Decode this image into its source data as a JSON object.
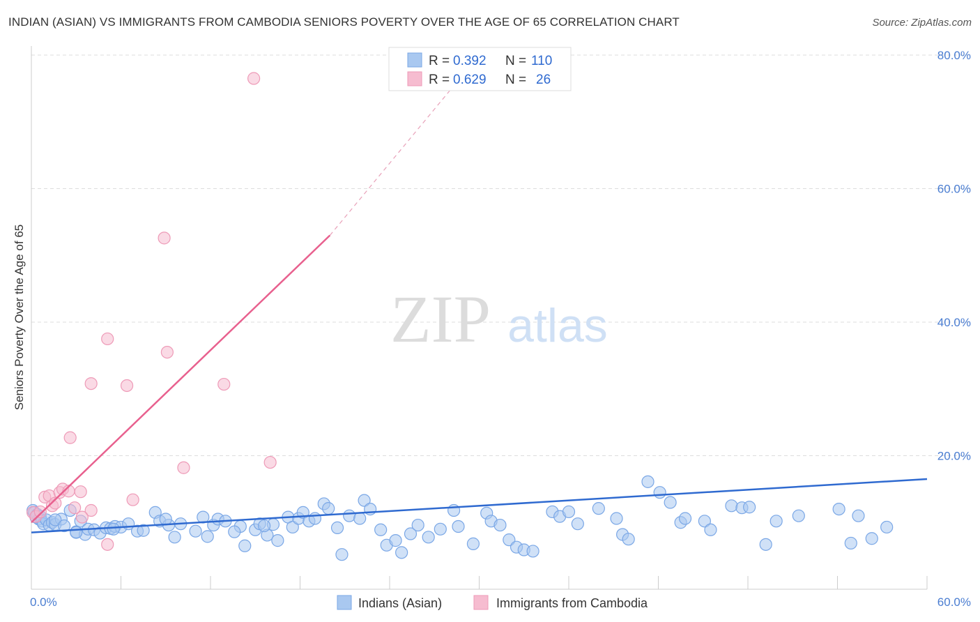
{
  "title": "INDIAN (ASIAN) VS IMMIGRANTS FROM CAMBODIA SENIORS POVERTY OVER THE AGE OF 65 CORRELATION CHART",
  "source": "Source: ZipAtlas.com",
  "watermark": {
    "zip": "ZIP",
    "atlas": "atlas"
  },
  "legend": {
    "r_label": "R =",
    "n_label": "N =",
    "rows": [
      {
        "r": "0.392",
        "n": "110"
      },
      {
        "r": "0.629",
        "n": "26"
      }
    ]
  },
  "colors": {
    "blue_fill": "#a9c8f0",
    "blue_stroke": "#7aa7e6",
    "blue_line": "#2f6ad0",
    "pink_fill": "#f6bcd0",
    "pink_stroke": "#ee9ab7",
    "pink_line": "#e8608e",
    "tick_text": "#4a7dd1",
    "grid": "#dddddd"
  },
  "chart_data": {
    "type": "scatter",
    "ylabel": "Seniors Poverty Over the Age of 65",
    "xlim": [
      0,
      60
    ],
    "ylim": [
      0,
      80
    ],
    "x_tick_labels": [
      "0.0%",
      "60.0%"
    ],
    "y_ticks": [
      20,
      40,
      60,
      80
    ],
    "y_tick_labels": [
      "20.0%",
      "40.0%",
      "60.0%",
      "80.0%"
    ],
    "grid": "horizontal dashed",
    "legend_position": "top-center",
    "series": [
      {
        "name": "Indians (Asian)",
        "color": "#a9c8f0",
        "points": [
          [
            0.1,
            11.8
          ],
          [
            0.2,
            11.5
          ],
          [
            0.3,
            10.8
          ],
          [
            0.4,
            11.2
          ],
          [
            0.5,
            10.5
          ],
          [
            0.6,
            10.9
          ],
          [
            0.7,
            10.2
          ],
          [
            0.8,
            9.8
          ],
          [
            1.0,
            10.4
          ],
          [
            1.2,
            9.6
          ],
          [
            1.4,
            10.0
          ],
          [
            1.6,
            9.7
          ],
          [
            2.0,
            10.5
          ],
          [
            2.6,
            11.8
          ],
          [
            3.0,
            8.6
          ],
          [
            3.3,
            10.2
          ],
          [
            3.6,
            8.2
          ],
          [
            3.8,
            9.0
          ],
          [
            4.2,
            8.9
          ],
          [
            4.6,
            8.4
          ],
          [
            5.0,
            9.2
          ],
          [
            5.3,
            9.1
          ],
          [
            5.6,
            9.4
          ],
          [
            6.0,
            9.3
          ],
          [
            6.5,
            9.8
          ],
          [
            7.1,
            8.7
          ],
          [
            8.3,
            11.5
          ],
          [
            8.6,
            10.2
          ],
          [
            9.2,
            9.6
          ],
          [
            9.6,
            7.8
          ],
          [
            10.0,
            9.8
          ],
          [
            11.0,
            8.7
          ],
          [
            11.5,
            10.8
          ],
          [
            12.2,
            9.6
          ],
          [
            12.5,
            10.5
          ],
          [
            13.0,
            10.2
          ],
          [
            14.0,
            9.4
          ],
          [
            14.3,
            6.5
          ],
          [
            15.0,
            8.9
          ],
          [
            15.3,
            9.8
          ],
          [
            15.8,
            8.1
          ],
          [
            16.2,
            9.7
          ],
          [
            16.5,
            7.3
          ],
          [
            17.2,
            10.8
          ],
          [
            17.5,
            9.3
          ],
          [
            17.9,
            10.6
          ],
          [
            18.2,
            11.5
          ],
          [
            18.6,
            10.2
          ],
          [
            19.0,
            10.6
          ],
          [
            19.6,
            12.8
          ],
          [
            19.9,
            12.1
          ],
          [
            20.5,
            9.2
          ],
          [
            20.8,
            5.2
          ],
          [
            21.3,
            11.0
          ],
          [
            22.0,
            10.6
          ],
          [
            22.3,
            13.3
          ],
          [
            22.7,
            12.0
          ],
          [
            23.4,
            8.9
          ],
          [
            23.8,
            6.6
          ],
          [
            24.4,
            7.3
          ],
          [
            24.8,
            5.5
          ],
          [
            25.4,
            8.3
          ],
          [
            25.9,
            9.6
          ],
          [
            26.6,
            7.8
          ],
          [
            27.4,
            9.0
          ],
          [
            28.3,
            11.8
          ],
          [
            28.6,
            9.4
          ],
          [
            29.6,
            6.8
          ],
          [
            30.5,
            11.4
          ],
          [
            30.8,
            10.2
          ],
          [
            31.4,
            9.6
          ],
          [
            32.0,
            7.4
          ],
          [
            32.5,
            6.3
          ],
          [
            33.0,
            5.9
          ],
          [
            33.6,
            5.7
          ],
          [
            34.9,
            11.6
          ],
          [
            35.4,
            10.9
          ],
          [
            36.0,
            11.6
          ],
          [
            36.6,
            9.8
          ],
          [
            38.0,
            12.1
          ],
          [
            39.2,
            10.6
          ],
          [
            39.6,
            8.2
          ],
          [
            40.0,
            7.5
          ],
          [
            41.3,
            16.1
          ],
          [
            42.1,
            14.5
          ],
          [
            42.8,
            13.0
          ],
          [
            43.5,
            10.0
          ],
          [
            43.8,
            10.6
          ],
          [
            45.1,
            10.2
          ],
          [
            45.5,
            8.9
          ],
          [
            46.9,
            12.5
          ],
          [
            47.6,
            12.2
          ],
          [
            48.1,
            12.3
          ],
          [
            49.2,
            6.7
          ],
          [
            49.9,
            10.2
          ],
          [
            51.4,
            11.0
          ],
          [
            54.1,
            12.0
          ],
          [
            55.4,
            11.0
          ],
          [
            54.9,
            6.9
          ],
          [
            56.3,
            7.6
          ],
          [
            57.3,
            9.3
          ],
          [
            1.6,
            10.4
          ],
          [
            2.2,
            9.5
          ],
          [
            3.0,
            8.5
          ],
          [
            5.5,
            9.0
          ],
          [
            7.5,
            8.8
          ],
          [
            9.0,
            10.5
          ],
          [
            11.8,
            7.9
          ],
          [
            13.6,
            8.6
          ],
          [
            15.6,
            9.5
          ]
        ]
      },
      {
        "name": "Immigrants from Cambodia",
        "color": "#f6bcd0",
        "points": [
          [
            0.1,
            11.5
          ],
          [
            0.3,
            10.9
          ],
          [
            0.6,
            11.6
          ],
          [
            0.9,
            13.8
          ],
          [
            1.2,
            14.0
          ],
          [
            1.4,
            12.5
          ],
          [
            1.6,
            12.9
          ],
          [
            1.9,
            14.5
          ],
          [
            2.1,
            15.0
          ],
          [
            2.5,
            14.7
          ],
          [
            2.9,
            12.2
          ],
          [
            3.3,
            14.6
          ],
          [
            4.0,
            11.8
          ],
          [
            5.1,
            37.5
          ],
          [
            2.6,
            22.7
          ],
          [
            4.0,
            30.8
          ],
          [
            6.4,
            30.5
          ],
          [
            6.8,
            13.4
          ],
          [
            8.9,
            52.6
          ],
          [
            9.1,
            35.5
          ],
          [
            10.2,
            18.2
          ],
          [
            12.9,
            30.7
          ],
          [
            14.9,
            76.5
          ],
          [
            16.0,
            19.0
          ],
          [
            3.4,
            10.8
          ],
          [
            5.1,
            6.7
          ]
        ]
      }
    ],
    "trend_lines": [
      {
        "series": "Indians (Asian)",
        "from": [
          0,
          8.5
        ],
        "to": [
          60,
          16.5
        ]
      },
      {
        "series": "Immigrants from Cambodia",
        "from": [
          0,
          10.0
        ],
        "to": [
          20,
          53.0
        ],
        "dashed_to": [
          30,
          80
        ]
      }
    ]
  },
  "bottom_legend": [
    {
      "label": "Indians (Asian)"
    },
    {
      "label": "Immigrants from Cambodia"
    }
  ]
}
